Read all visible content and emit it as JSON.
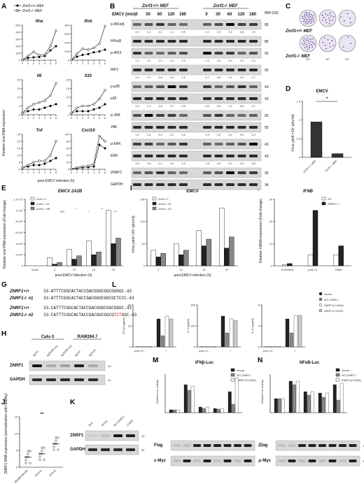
{
  "panels": [
    "A",
    "B",
    "C",
    "D",
    "E",
    "F",
    "G",
    "H",
    "I",
    "J",
    "K",
    "L",
    "M",
    "N"
  ],
  "panel_A": {
    "legend": [
      "Znrf1+/+ MEF",
      "Znrf1-/- MEF"
    ],
    "ylabel": "Relative viral RNA expression",
    "xlabel": "post EMCV infection (h)",
    "x": [
      0,
      1,
      2,
      3,
      4,
      5,
      6
    ]
  },
  "panel_B": {
    "headers": [
      "Znrf1+/+ MEF",
      "Znrf1-/- MEF"
    ],
    "time_label": "EMCV (min)",
    "times": [
      "0",
      "30",
      "60",
      "120",
      "180",
      "0",
      "30",
      "60",
      "120",
      "180"
    ],
    "mw_label": "MW (kD)",
    "blots": [
      {
        "name": "p-IKKα/β",
        "mw": "85",
        "q": [
          "1.0",
          "1.4",
          "2.1",
          "1.1",
          "0.9",
          "1.2",
          "1.5",
          "3.2",
          "1.8",
          "1.9"
        ]
      },
      {
        "name": "IKKα/β",
        "mw": "85",
        "q": []
      },
      {
        "name": "p-IRF3",
        "mw": "55",
        "q": [
          "1.0",
          "1.0",
          "2.0",
          "1.6",
          "1.9",
          "1.2",
          "1.6",
          "3.9",
          "2.0",
          "1.5"
        ]
      },
      {
        "name": "IRF3",
        "mw": "55",
        "q": [
          "1.0",
          "1.2",
          "1.8",
          "1.0",
          "1.1",
          "0.7",
          "0.8",
          "2.1",
          "1.2",
          "1.7"
        ]
      },
      {
        "name": "p-p38",
        "mw": "43",
        "q": []
      },
      {
        "name": "p38",
        "mw": "43",
        "q": [
          "1.0",
          "1.4",
          "1.8",
          "0.7",
          "0.8",
          "0.6",
          "0.9",
          "1.4",
          "0.9",
          "1.1"
        ]
      },
      {
        "name": "p-JNK",
        "mw": "55",
        "q": []
      },
      {
        "name": "JNK",
        "mw": "55",
        "q": [
          "1.0",
          "1.6",
          "4.0",
          "2.2",
          "1.5",
          "0.9",
          "1.5",
          "3.2",
          "3.0",
          "2.5"
        ]
      },
      {
        "name": "p-ERK",
        "mw": "43",
        "q": []
      },
      {
        "name": "ERK",
        "mw": "43",
        "q": [
          "1.0",
          "1.6",
          "2.1",
          "1.5",
          "2.3",
          "1.8",
          "2.6",
          "3.2",
          "4.4",
          "3.8"
        ]
      },
      {
        "name": "ZNRF1",
        "mw": "26",
        "q": []
      },
      {
        "name": "GAPDH",
        "mw": "34",
        "q": []
      }
    ]
  },
  "panel_C": {
    "rows": [
      "Znrf1+/+ MEF",
      "Znrf1-/- MEF"
    ],
    "dilutions": [
      "10⁴",
      "10⁵",
      "10⁶"
    ]
  },
  "panel_E": {
    "xlabel": "post EMCV infection (h)",
    "ylabel": "Relative viral RNA expression (Fold change)",
    "legend": [
      "Znrf1+/+",
      "Znrf1-/- #1",
      "Znrf1-/- #2"
    ],
    "sig": [
      "**",
      "NS",
      "*",
      "*",
      "**",
      "***"
    ]
  },
  "panel_F": {
    "xlabel": "post EMCV infection (h)",
    "ylabel": "Virus yield ×10⁵ (pfu/ml)",
    "legend": [
      "Znrf1+/+",
      "Znrf1-/- #1",
      "Znrf1-/- #2"
    ]
  },
  "panel_G": {
    "rows": [
      {
        "label": "ZNRF1+/+",
        "seq": "33-ATTTCGGCACTACCGACGGGCGGCGGGGC-43",
        "hl": ""
      },
      {
        "label": "ZNRF1-/- #1",
        "seq": "33-ATTTCGGCACTACCGACGGGCGGCGCTCC",
        "hl": "",
        "tail": "C-43"
      },
      {
        "label": "ZNRF1+/+",
        "seq": "33-CATTTCGGCACTACCGACGGGCGGCGGGC-43",
        "hl": ""
      },
      {
        "label": "ZNRF1-/- #2",
        "seq": "33-CATTTCGGCACTACCGACGGCGGCG",
        "hl": "TCT",
        "tail": "GGC-43"
      }
    ]
  },
  "panel_H": {
    "groups": [
      "Calu-3",
      "RAW264.7"
    ],
    "lanes": [
      "sgCtrl",
      "sgZNRF1#1",
      "sgZNRF1#2",
      "sgCtrl",
      "sgZnrf1"
    ],
    "blots": [
      {
        "name": "ZNRF1",
        "mw": "26"
      },
      {
        "name": "GAPDH",
        "mw": "34"
      }
    ]
  },
  "panel_I": {
    "ylabel": "Relative mRNA expression (Fold change)",
    "legend": [
      "WT",
      "ZNRF1-/-"
    ]
  },
  "panel_J": {
    "ylabel": "ZNRF1 RNA expression (normalization with healthy)",
    "sig": "**"
  },
  "panel_K": {
    "lanes": [
      "Null",
      "Vector",
      "WT-ZNRF1",
      "C184A"
    ],
    "blots": [
      {
        "name": "ZNRF1",
        "mw": "26"
      },
      {
        "name": "GAPDH",
        "mw": "34"
      }
    ]
  },
  "panel_L": {
    "legend": [
      "Vector",
      "WT-ZNRF1",
      "ZNRF1(C184A)",
      "ZNRF1(Y103F)"
    ],
    "xlabel": "poly I:C",
    "y_titles": [
      "IFN-β (pg/ml)",
      "IL-6 (pg/ml)",
      "IL-10 (pg/ml)"
    ]
  },
  "panel_M": {
    "legend": [
      "Vector",
      "WT-ZNRF1",
      "ZNRF1(C184A)"
    ],
    "ylabel": "Relative luc activity",
    "blots": [
      {
        "name": "Flag",
        "mw": "130"
      },
      {
        "name": "c-Myc",
        "mw": "26"
      }
    ]
  },
  "panel_N": {
    "legend": [
      "Vector",
      "WT-ZNRF1",
      "ZNRF1(C184A)"
    ],
    "ylabel": "Relative luc activity",
    "blots": [
      {
        "name": "Flag",
        "mw": "130"
      },
      {
        "name": "c-Myc",
        "mw": "26"
      }
    ]
  },
  "chart_data": [
    {
      "panel": "A",
      "title": "Ifna",
      "type": "line",
      "x": [
        0,
        1,
        2,
        3,
        4,
        5,
        6
      ],
      "ylim": [
        0,
        500
      ],
      "yticks": [
        0,
        100,
        200,
        300,
        400,
        500
      ],
      "series": [
        {
          "name": "Znrf1+/+ MEF",
          "values": [
            1,
            30,
            40,
            45,
            60,
            140,
            200
          ]
        },
        {
          "name": "Znrf1-/- MEF",
          "values": [
            1,
            60,
            120,
            70,
            80,
            200,
            420
          ]
        }
      ]
    },
    {
      "panel": "A",
      "title": "Ifnb",
      "type": "line",
      "x": [
        0,
        1,
        2,
        3,
        4,
        5,
        6
      ],
      "ylim": [
        0,
        800
      ],
      "yticks": [
        0,
        200,
        400,
        600,
        800
      ],
      "series": [
        {
          "name": "Znrf1+/+ MEF",
          "values": [
            1,
            80,
            120,
            140,
            180,
            200,
            240
          ]
        },
        {
          "name": "Znrf1-/- MEF",
          "values": [
            1,
            150,
            260,
            240,
            280,
            380,
            780
          ]
        }
      ]
    },
    {
      "panel": "A",
      "title": "Il6",
      "type": "line",
      "x": [
        0,
        1,
        2,
        3,
        4,
        5,
        6
      ],
      "ylim": [
        0,
        20
      ],
      "yticks": [
        0,
        5,
        10,
        15,
        20
      ],
      "series": [
        {
          "name": "Znrf1+/+ MEF",
          "values": [
            1,
            2,
            3,
            3,
            4,
            5,
            6
          ]
        },
        {
          "name": "Znrf1-/- MEF",
          "values": [
            1,
            4,
            6,
            7,
            8,
            11,
            18
          ]
        }
      ]
    },
    {
      "panel": "A",
      "title": "Il10",
      "type": "line",
      "x": [
        0,
        1,
        2,
        3,
        4,
        5,
        6
      ],
      "ylim": [
        0,
        20
      ],
      "yticks": [
        0,
        5,
        10,
        15,
        20
      ],
      "series": [
        {
          "name": "Znrf1+/+ MEF",
          "values": [
            1,
            2,
            2,
            2,
            3,
            4,
            6
          ]
        },
        {
          "name": "Znrf1-/- MEF",
          "values": [
            1,
            4,
            5,
            5,
            6,
            9,
            14
          ]
        }
      ]
    },
    {
      "panel": "A",
      "title": "Tnf",
      "type": "line",
      "x": [
        0,
        1,
        2,
        3,
        4,
        5,
        6
      ],
      "ylim": [
        0,
        25
      ],
      "yticks": [
        0,
        5,
        10,
        15,
        20,
        25
      ],
      "series": [
        {
          "name": "Znrf1+/+ MEF",
          "values": [
            1,
            2,
            3,
            3,
            4,
            6,
            8
          ]
        },
        {
          "name": "Znrf1-/- MEF",
          "values": [
            1,
            3,
            5,
            6,
            6,
            10,
            20
          ]
        }
      ]
    },
    {
      "panel": "A",
      "title": "Cxcl10",
      "type": "line",
      "x": [
        0,
        1,
        2,
        3,
        4,
        5,
        6
      ],
      "ylim": [
        0,
        100
      ],
      "yticks": [
        0,
        20,
        40,
        60,
        80,
        100
      ],
      "series": [
        {
          "name": "Znrf1+/+ MEF",
          "values": [
            1,
            3,
            5,
            6,
            8,
            70,
            60
          ]
        },
        {
          "name": "Znrf1-/- MEF",
          "values": [
            1,
            5,
            8,
            10,
            15,
            95,
            80
          ]
        }
      ]
    },
    {
      "panel": "D",
      "title": "EMCV",
      "type": "bar",
      "categories": [
        "Znrf1+/+ MEF",
        "Znrf1-/- MEF"
      ],
      "values": [
        0.95,
        0.1
      ],
      "ylabel": "Virus yield ×10⁶ (pfu/ml)",
      "ylim": [
        0,
        1.5
      ],
      "yticks": [
        0,
        0.5,
        1.0,
        1.5
      ],
      "sig": "*"
    },
    {
      "panel": "E",
      "title": "EMCV 2A2B",
      "type": "bar",
      "categories": [
        "Mock",
        "4",
        "12",
        "16",
        "24"
      ],
      "ylim": [
        0,
        12000000
      ],
      "yticks": [
        "0",
        "2×10⁶",
        "4×10⁶",
        "6×10⁶",
        "8×10⁶",
        "1×10⁷",
        "1.2×10⁷"
      ],
      "series": [
        {
          "name": "Znrf1+/+",
          "values": [
            0,
            1500000,
            3000000,
            4500000,
            10000000
          ]
        },
        {
          "name": "Znrf1-/- #1",
          "values": [
            0,
            300000,
            1200000,
            2000000,
            4000000
          ]
        },
        {
          "name": "Znrf1-/- #2",
          "values": [
            0,
            600000,
            1800000,
            2500000,
            5000000
          ]
        }
      ]
    },
    {
      "panel": "F",
      "title": "EMCV",
      "type": "bar",
      "categories": [
        "4",
        "12",
        "16",
        "24"
      ],
      "ylim": [
        0,
        150
      ],
      "yticks": [
        0,
        50,
        100,
        150
      ],
      "series": [
        {
          "name": "Znrf1+/+",
          "values": [
            35,
            50,
            80,
            130
          ]
        },
        {
          "name": "Znrf1-/- #1",
          "values": [
            20,
            25,
            45,
            40
          ]
        },
        {
          "name": "Znrf1-/- #2",
          "values": [
            28,
            35,
            60,
            65
          ]
        }
      ]
    },
    {
      "panel": "I",
      "title": "IFNB",
      "type": "bar",
      "categories": [
        "Untreated",
        "poly I:C",
        "R848"
      ],
      "ylim": [
        0,
        30
      ],
      "yticks": [
        0,
        10,
        20,
        30
      ],
      "series": [
        {
          "name": "WT",
          "values": [
            0.5,
            5,
            5
          ]
        },
        {
          "name": "ZNRF1-/-",
          "values": [
            1,
            25,
            9
          ]
        }
      ]
    },
    {
      "panel": "J",
      "type": "scatter",
      "categories": [
        "Mild/Moderate",
        "Severe",
        "Critical"
      ],
      "ylim": [
        0,
        15
      ],
      "yticks": [
        0,
        5,
        10,
        15
      ],
      "means": [
        3,
        4,
        7
      ]
    }
  ]
}
